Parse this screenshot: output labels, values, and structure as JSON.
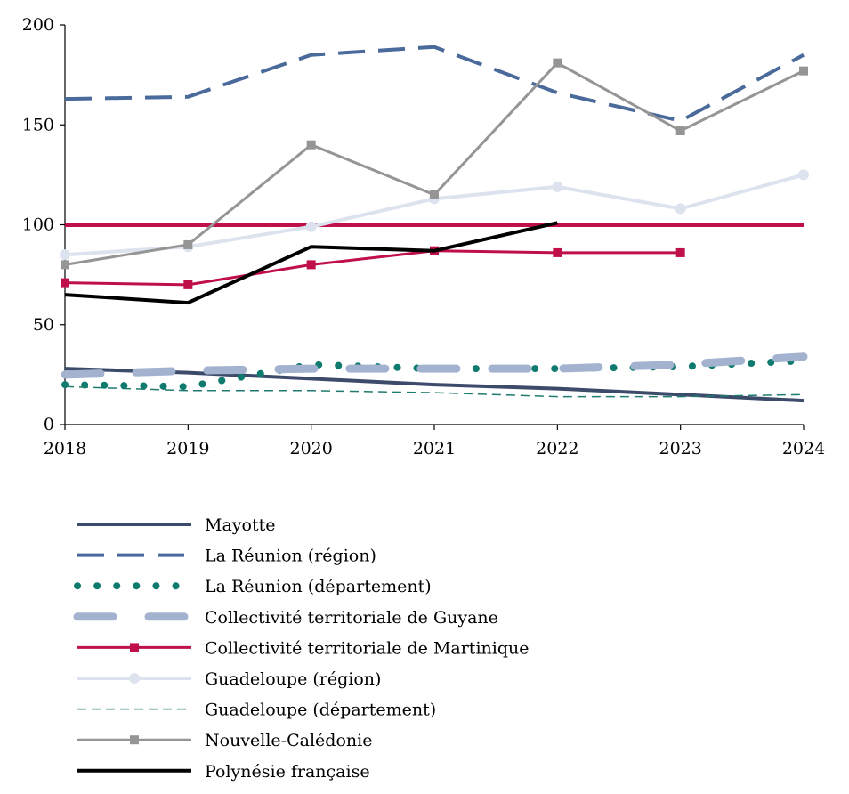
{
  "chart_data": {
    "type": "line",
    "title": "",
    "xlabel": "",
    "ylabel": "",
    "x": [
      2018,
      2019,
      2020,
      2021,
      2022,
      2023,
      2024
    ],
    "x_ticks": [
      "2018",
      "2019",
      "2020",
      "2021",
      "2022",
      "2023",
      "2024"
    ],
    "y_ticks": [
      "0",
      "50",
      "100",
      "150",
      "200"
    ],
    "ylim": [
      0,
      200
    ],
    "grid": false,
    "legend_position": "bottom",
    "reference_line": {
      "y": 100,
      "color": "#c0104a"
    },
    "series": [
      {
        "name": "Mayotte",
        "values": [
          28,
          26,
          23,
          20,
          18,
          15,
          12
        ],
        "color": "#3d4b6b",
        "style": "solid"
      },
      {
        "name": "La Réunion (région)",
        "values": [
          163,
          164,
          185,
          189,
          166,
          152,
          185
        ],
        "color": "#4a6a9b",
        "style": "long-dash"
      },
      {
        "name": "La Réunion (département)",
        "values": [
          20,
          19,
          30,
          28,
          28,
          29,
          32
        ],
        "color": "#0f7a6e",
        "style": "dots"
      },
      {
        "name": "Collectivité territoriale de Guyane",
        "values": [
          25,
          27,
          28,
          28,
          28,
          30,
          34
        ],
        "color": "#a3b3cf",
        "style": "thick-dash"
      },
      {
        "name": "Collectivité territoriale de Martinique",
        "values": [
          71,
          70,
          80,
          87,
          86,
          86,
          null
        ],
        "color": "#c0104a",
        "style": "square-markers"
      },
      {
        "name": "Guadeloupe (région)",
        "values": [
          85,
          89,
          99,
          113,
          119,
          108,
          125
        ],
        "color": "#dde3ee",
        "style": "circle-markers"
      },
      {
        "name": "Guadeloupe (département)",
        "values": [
          19,
          17,
          17,
          16,
          14,
          14,
          15
        ],
        "color": "#1f7a70",
        "style": "short-dash"
      },
      {
        "name": "Nouvelle-Calédonie",
        "values": [
          80,
          90,
          140,
          115,
          181,
          147,
          177
        ],
        "color": "#959595",
        "style": "square-markers"
      },
      {
        "name": "Polynésie française",
        "values": [
          65,
          61,
          89,
          87,
          101,
          null,
          null
        ],
        "color": "#000000",
        "style": "solid"
      }
    ]
  }
}
